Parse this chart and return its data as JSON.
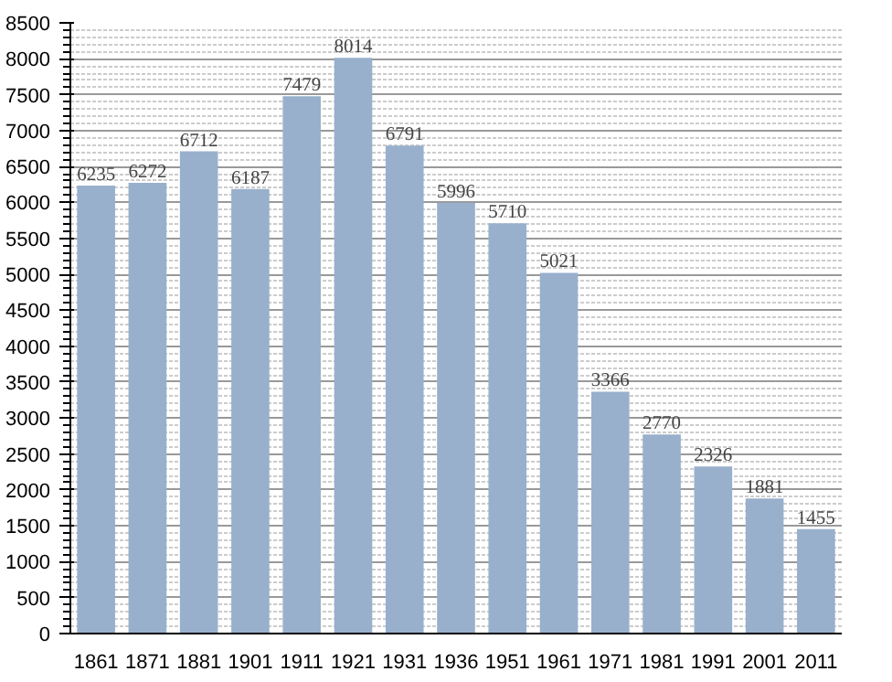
{
  "chart_data": {
    "type": "bar",
    "categories": [
      "1861",
      "1871",
      "1881",
      "1901",
      "1911",
      "1921",
      "1931",
      "1936",
      "1951",
      "1961",
      "1971",
      "1981",
      "1991",
      "2001",
      "2011"
    ],
    "values": [
      6235,
      6272,
      6712,
      6187,
      7479,
      8014,
      6791,
      5996,
      5710,
      5021,
      3366,
      2770,
      2326,
      1881,
      1455
    ],
    "color": "#98b0cc",
    "ylim": [
      0,
      8500
    ],
    "yticks": [
      0,
      500,
      1000,
      1500,
      2000,
      2500,
      3000,
      3500,
      4000,
      4500,
      5000,
      5500,
      6000,
      6500,
      7000,
      7500,
      8000,
      8500
    ],
    "grid": "y",
    "data_labels": true
  }
}
